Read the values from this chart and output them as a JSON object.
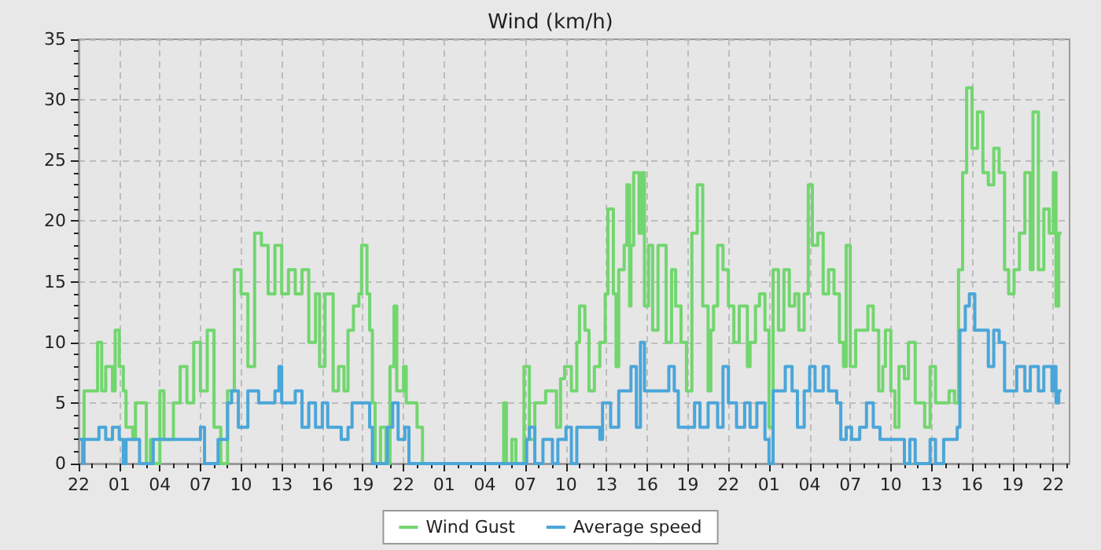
{
  "chart_data": {
    "type": "step",
    "title": "Wind (km/h)",
    "grid": true,
    "legend": "bottom",
    "xlim": [
      "--01-01T22:00",
      "--01-04T23:12"
    ],
    "xticks": [
      {
        "value": "--01-01T22:00",
        "label": "22"
      },
      {
        "value": "--01-01T23:00",
        "label": null
      },
      {
        "value": "--01-02T00:00",
        "label": null
      },
      {
        "value": "--01-02T01:00",
        "label": "01"
      },
      {
        "value": "--01-02T02:00",
        "label": null
      },
      {
        "value": "--01-02T03:00",
        "label": null
      },
      {
        "value": "--01-02T04:00",
        "label": "04"
      },
      {
        "value": "--01-02T05:00",
        "label": null
      },
      {
        "value": "--01-02T06:00",
        "label": null
      },
      {
        "value": "--01-02T07:00",
        "label": "07"
      },
      {
        "value": "--01-02T08:00",
        "label": null
      },
      {
        "value": "--01-02T09:00",
        "label": null
      },
      {
        "value": "--01-02T10:00",
        "label": "10"
      },
      {
        "value": "--01-02T11:00",
        "label": null
      },
      {
        "value": "--01-02T12:00",
        "label": null
      },
      {
        "value": "--01-02T13:00",
        "label": "13"
      },
      {
        "value": "--01-02T14:00",
        "label": null
      },
      {
        "value": "--01-02T15:00",
        "label": null
      },
      {
        "value": "--01-02T16:00",
        "label": "16"
      },
      {
        "value": "--01-02T17:00",
        "label": null
      },
      {
        "value": "--01-02T18:00",
        "label": null
      },
      {
        "value": "--01-02T19:00",
        "label": "19"
      },
      {
        "value": "--01-02T20:00",
        "label": null
      },
      {
        "value": "--01-02T21:00",
        "label": null
      },
      {
        "value": "--01-02T22:00",
        "label": "22"
      },
      {
        "value": "--01-02T23:00",
        "label": null
      },
      {
        "value": "--01-03T00:00",
        "label": null
      },
      {
        "value": "--01-03T01:00",
        "label": "01"
      },
      {
        "value": "--01-03T02:00",
        "label": null
      },
      {
        "value": "--01-03T03:00",
        "label": null
      },
      {
        "value": "--01-03T04:00",
        "label": "04"
      },
      {
        "value": "--01-03T05:00",
        "label": null
      },
      {
        "value": "--01-03T06:00",
        "label": null
      },
      {
        "value": "--01-03T07:00",
        "label": "07"
      },
      {
        "value": "--01-03T08:00",
        "label": null
      },
      {
        "value": "--01-03T09:00",
        "label": null
      },
      {
        "value": "--01-03T10:00",
        "label": "10"
      },
      {
        "value": "--01-03T11:00",
        "label": null
      },
      {
        "value": "--01-03T12:00",
        "label": null
      },
      {
        "value": "--01-03T13:00",
        "label": "13"
      },
      {
        "value": "--01-03T14:00",
        "label": null
      },
      {
        "value": "--01-03T15:00",
        "label": null
      },
      {
        "value": "--01-03T16:00",
        "label": "16"
      },
      {
        "value": "--01-03T17:00",
        "label": null
      },
      {
        "value": "--01-03T18:00",
        "label": null
      },
      {
        "value": "--01-03T19:00",
        "label": "19"
      },
      {
        "value": "--01-03T20:00",
        "label": null
      },
      {
        "value": "--01-03T21:00",
        "label": null
      },
      {
        "value": "--01-03T22:00",
        "label": "22"
      },
      {
        "value": "--01-03T23:00",
        "label": null
      },
      {
        "value": "--01-04T00:00",
        "label": null
      },
      {
        "value": "--01-04T01:00",
        "label": "01"
      },
      {
        "value": "--01-04T02:00",
        "label": null
      },
      {
        "value": "--01-04T03:00",
        "label": null
      },
      {
        "value": "--01-04T04:00",
        "label": "04"
      },
      {
        "value": "--01-04T05:00",
        "label": null
      },
      {
        "value": "--01-04T06:00",
        "label": null
      },
      {
        "value": "--01-04T07:00",
        "label": "07"
      },
      {
        "value": "--01-04T08:00",
        "label": null
      },
      {
        "value": "--01-04T09:00",
        "label": null
      },
      {
        "value": "--01-04T10:00",
        "label": "10"
      },
      {
        "value": "--01-04T11:00",
        "label": null
      },
      {
        "value": "--01-04T12:00",
        "label": null
      },
      {
        "value": "--01-04T13:00",
        "label": "13"
      },
      {
        "value": "--01-04T14:00",
        "label": null
      },
      {
        "value": "--01-04T15:00",
        "label": null
      },
      {
        "value": "--01-04T16:00",
        "label": "16"
      },
      {
        "value": "--01-04T17:00",
        "label": null
      },
      {
        "value": "--01-04T18:00",
        "label": null
      },
      {
        "value": "--01-04T19:00",
        "label": "19"
      },
      {
        "value": "--01-04T20:00",
        "label": null
      },
      {
        "value": "--01-04T21:00",
        "label": null
      },
      {
        "value": "--01-04T22:00",
        "label": "22"
      },
      {
        "value": "--01-04T23:00",
        "label": null
      }
    ],
    "ylim": [
      0,
      35
    ],
    "yticks": [
      0,
      {
        "value": 1,
        "label": null
      },
      {
        "value": 2,
        "label": null
      },
      {
        "value": 3,
        "label": null
      },
      {
        "value": 4,
        "label": null
      },
      5,
      {
        "value": 6,
        "label": null
      },
      {
        "value": 7,
        "label": null
      },
      {
        "value": 8,
        "label": null
      },
      {
        "value": 9,
        "label": null
      },
      10,
      {
        "value": 11,
        "label": null
      },
      {
        "value": 12,
        "label": null
      },
      {
        "value": 13,
        "label": null
      },
      {
        "value": 14,
        "label": null
      },
      15,
      {
        "value": 16,
        "label": null
      },
      {
        "value": 17,
        "label": null
      },
      {
        "value": 18,
        "label": null
      },
      {
        "value": 19,
        "label": null
      },
      20,
      {
        "value": 21,
        "label": null
      },
      {
        "value": 22,
        "label": null
      },
      {
        "value": 23,
        "label": null
      },
      {
        "value": 24,
        "label": null
      },
      25,
      {
        "value": 26,
        "label": null
      },
      {
        "value": 27,
        "label": null
      },
      {
        "value": 28,
        "label": null
      },
      {
        "value": 29,
        "label": null
      },
      30,
      {
        "value": 31,
        "label": null
      },
      {
        "value": 32,
        "label": null
      },
      {
        "value": 33,
        "label": null
      },
      {
        "value": 34,
        "label": null
      },
      35
    ],
    "series": [
      {
        "name": "Wind Gust",
        "color": "#72d66f",
        "x": [
          "--01-01T22:00",
          "--01-01T22:24",
          "--01-01T23:24",
          "--01-01T23:42",
          "--01-02T00:00",
          "--01-02T00:30",
          "--01-02T00:42",
          "--01-02T01:00",
          "--01-02T01:18",
          "--01-02T01:30",
          "--01-02T02:00",
          "--01-02T02:12",
          "--01-02T03:00",
          "--01-02T03:18",
          "--01-02T03:30",
          "--01-02T04:00",
          "--01-02T04:18",
          "--01-02T05:00",
          "--01-02T05:30",
          "--01-02T06:00",
          "--01-02T06:30",
          "--01-02T07:00",
          "--01-02T07:30",
          "--01-02T08:00",
          "--01-02T08:30",
          "--01-02T09:00",
          "--01-02T09:30",
          "--01-02T10:00",
          "--01-02T10:30",
          "--01-02T11:00",
          "--01-02T11:30",
          "--01-02T12:00",
          "--01-02T12:30",
          "--01-02T13:00",
          "--01-02T13:30",
          "--01-02T14:00",
          "--01-02T14:30",
          "--01-02T15:00",
          "--01-02T15:30",
          "--01-02T15:48",
          "--01-02T16:12",
          "--01-02T16:48",
          "--01-02T17:12",
          "--01-02T17:36",
          "--01-02T17:54",
          "--01-02T18:18",
          "--01-02T18:42",
          "--01-02T18:54",
          "--01-02T19:18",
          "--01-02T19:30",
          "--01-02T19:42",
          "--01-02T19:54",
          "--01-02T20:18",
          "--01-02T20:42",
          "--01-02T21:00",
          "--01-02T21:18",
          "--01-02T21:30",
          "--01-02T22:00",
          "--01-02T22:12",
          "--01-02T23:00",
          "--01-02T23:24",
          "--01-03T05:24",
          "--01-03T05:36",
          "--01-03T06:00",
          "--01-03T06:18",
          "--01-03T06:54",
          "--01-03T07:18",
          "--01-03T07:42",
          "--01-03T08:30",
          "--01-03T09:18",
          "--01-03T09:36",
          "--01-03T09:54",
          "--01-03T10:24",
          "--01-03T10:48",
          "--01-03T11:00",
          "--01-03T11:24",
          "--01-03T11:42",
          "--01-03T12:06",
          "--01-03T12:30",
          "--01-03T12:54",
          "--01-03T13:06",
          "--01-03T13:30",
          "--01-03T13:42",
          "--01-03T13:54",
          "--01-03T14:18",
          "--01-03T14:30",
          "--01-03T14:42",
          "--01-03T14:48",
          "--01-03T15:00",
          "--01-03T15:24",
          "--01-03T15:36",
          "--01-03T15:48",
          "--01-03T16:06",
          "--01-03T16:24",
          "--01-03T16:48",
          "--01-03T17:24",
          "--01-03T17:48",
          "--01-03T18:06",
          "--01-03T18:30",
          "--01-03T18:54",
          "--01-03T19:18",
          "--01-03T19:42",
          "--01-03T20:06",
          "--01-03T20:30",
          "--01-03T20:42",
          "--01-03T20:54",
          "--01-03T21:12",
          "--01-03T21:36",
          "--01-03T22:00",
          "--01-03T22:24",
          "--01-03T22:48",
          "--01-03T23:24",
          "--01-03T23:36",
          "--01-04T00:00",
          "--01-04T00:18",
          "--01-04T00:42",
          "--01-04T01:00",
          "--01-04T01:18",
          "--01-04T01:42",
          "--01-04T02:06",
          "--01-04T02:30",
          "--01-04T02:54",
          "--01-04T03:12",
          "--01-04T03:36",
          "--01-04T03:54",
          "--01-04T04:12",
          "--01-04T04:36",
          "--01-04T05:00",
          "--01-04T05:24",
          "--01-04T05:48",
          "--01-04T06:12",
          "--01-04T06:30",
          "--01-04T06:42",
          "--01-04T07:00",
          "--01-04T07:24",
          "--01-04T08:18",
          "--01-04T08:42",
          "--01-04T09:06",
          "--01-04T09:24",
          "--01-04T09:36",
          "--01-04T10:00",
          "--01-04T10:18",
          "--01-04T10:36",
          "--01-04T11:00",
          "--01-04T11:18",
          "--01-04T11:48",
          "--01-04T12:30",
          "--01-04T12:54",
          "--01-04T13:18",
          "--01-04T14:18",
          "--01-04T14:42",
          "--01-04T15:00",
          "--01-04T15:18",
          "--01-04T15:36",
          "--01-04T16:00",
          "--01-04T16:24",
          "--01-04T16:48",
          "--01-04T17:12",
          "--01-04T17:36",
          "--01-04T18:00",
          "--01-04T18:24",
          "--01-04T18:42",
          "--01-04T19:06",
          "--01-04T19:30",
          "--01-04T19:54",
          "--01-04T20:18",
          "--01-04T20:30",
          "--01-04T20:54",
          "--01-04T21:18",
          "--01-04T21:42",
          "--01-04T22:00",
          "--01-04T22:12",
          "--01-04T22:24",
          "--01-04T22:36"
        ],
        "values": [
          2,
          6,
          10,
          6,
          8,
          6,
          11,
          8,
          6,
          3,
          2,
          5,
          0,
          2,
          0,
          6,
          2,
          5,
          8,
          5,
          10,
          6,
          11,
          3,
          0,
          6,
          16,
          14,
          8,
          19,
          18,
          14,
          18,
          14,
          16,
          14,
          16,
          10,
          14,
          8,
          14,
          6,
          8,
          6,
          11,
          13,
          14,
          18,
          14,
          11,
          5,
          0,
          3,
          0,
          8,
          13,
          6,
          8,
          5,
          3,
          0,
          5,
          0,
          2,
          0,
          8,
          2,
          5,
          6,
          3,
          7,
          8,
          6,
          10,
          13,
          11,
          6,
          8,
          10,
          14,
          21,
          14,
          8,
          16,
          18,
          23,
          13,
          18,
          24,
          19,
          24,
          13,
          18,
          11,
          18,
          10,
          16,
          13,
          10,
          6,
          19,
          23,
          13,
          6,
          11,
          13,
          18,
          16,
          13,
          10,
          13,
          8,
          10,
          13,
          14,
          11,
          3,
          16,
          11,
          16,
          13,
          14,
          11,
          14,
          23,
          18,
          19,
          14,
          16,
          14,
          10,
          8,
          18,
          8,
          11,
          13,
          11,
          6,
          8,
          11,
          6,
          3,
          8,
          7,
          10,
          5,
          3,
          8,
          5,
          6,
          5,
          16,
          24,
          31,
          26,
          29,
          24,
          23,
          26,
          24,
          16,
          14,
          16,
          19,
          24,
          16,
          29,
          16,
          21,
          19,
          24,
          13,
          19,
          19
        ]
      },
      {
        "name": "Average speed",
        "color": "#4aa6d9",
        "x": [
          "--01-01T22:00",
          "--01-01T22:18",
          "--01-01T22:24",
          "--01-01T23:30",
          "--01-02T00:00",
          "--01-02T00:30",
          "--01-02T01:00",
          "--01-02T01:18",
          "--01-02T01:30",
          "--01-02T02:30",
          "--01-02T03:30",
          "--01-02T07:00",
          "--01-02T07:18",
          "--01-02T08:18",
          "--01-02T09:00",
          "--01-02T09:18",
          "--01-02T09:48",
          "--01-02T10:30",
          "--01-02T11:18",
          "--01-02T12:30",
          "--01-02T12:48",
          "--01-02T13:00",
          "--01-02T14:00",
          "--01-02T14:30",
          "--01-02T15:00",
          "--01-02T15:30",
          "--01-02T16:00",
          "--01-02T16:24",
          "--01-02T17:24",
          "--01-02T17:54",
          "--01-02T18:12",
          "--01-02T19:30",
          "--01-02T19:42",
          "--01-02T20:48",
          "--01-02T21:12",
          "--01-02T21:36",
          "--01-02T22:06",
          "--01-02T22:24",
          "--01-03T07:06",
          "--01-03T07:18",
          "--01-03T07:42",
          "--01-03T08:18",
          "--01-03T09:00",
          "--01-03T09:24",
          "--01-03T10:00",
          "--01-03T10:24",
          "--01-03T10:48",
          "--01-03T12:30",
          "--01-03T12:42",
          "--01-03T13:18",
          "--01-03T13:54",
          "--01-03T14:48",
          "--01-03T15:12",
          "--01-03T15:30",
          "--01-03T15:48",
          "--01-03T17:36",
          "--01-03T18:00",
          "--01-03T18:18",
          "--01-03T19:30",
          "--01-03T19:54",
          "--01-03T20:30",
          "--01-03T21:12",
          "--01-03T21:36",
          "--01-03T22:00",
          "--01-03T22:36",
          "--01-03T23:12",
          "--01-03T23:36",
          "--01-04T00:06",
          "--01-04T00:42",
          "--01-04T01:00",
          "--01-04T01:18",
          "--01-04T02:12",
          "--01-04T02:42",
          "--01-04T03:06",
          "--01-04T03:36",
          "--01-04T04:00",
          "--01-04T04:24",
          "--01-04T05:00",
          "--01-04T05:24",
          "--01-04T06:00",
          "--01-04T06:18",
          "--01-04T06:42",
          "--01-04T07:06",
          "--01-04T07:42",
          "--01-04T08:12",
          "--01-04T08:42",
          "--01-04T09:12",
          "--01-04T11:00",
          "--01-04T11:24",
          "--01-04T11:48",
          "--01-04T12:54",
          "--01-04T13:18",
          "--01-04T13:54",
          "--01-04T14:54",
          "--01-04T15:06",
          "--01-04T15:30",
          "--01-04T15:48",
          "--01-04T16:12",
          "--01-04T17:12",
          "--01-04T17:36",
          "--01-04T18:00",
          "--01-04T18:24",
          "--01-04T19:18",
          "--01-04T19:54",
          "--01-04T20:18",
          "--01-04T20:54",
          "--01-04T21:18",
          "--01-04T21:54",
          "--01-04T22:00",
          "--01-04T22:12",
          "--01-04T22:24",
          "--01-04T22:36"
        ],
        "values": [
          2,
          0,
          2,
          3,
          2,
          3,
          2,
          0,
          2,
          0,
          2,
          3,
          0,
          2,
          5,
          6,
          3,
          6,
          5,
          6,
          8,
          5,
          6,
          3,
          5,
          3,
          5,
          3,
          2,
          3,
          5,
          3,
          0,
          3,
          5,
          2,
          3,
          0,
          2,
          3,
          0,
          2,
          0,
          2,
          3,
          0,
          3,
          2,
          5,
          3,
          6,
          8,
          3,
          10,
          6,
          8,
          6,
          3,
          5,
          3,
          5,
          3,
          8,
          5,
          3,
          5,
          3,
          5,
          2,
          0,
          6,
          8,
          6,
          3,
          6,
          8,
          6,
          8,
          6,
          5,
          2,
          3,
          2,
          3,
          5,
          3,
          2,
          0,
          2,
          0,
          2,
          0,
          2,
          3,
          11,
          13,
          14,
          11,
          8,
          11,
          10,
          6,
          8,
          6,
          8,
          6,
          8,
          6,
          8,
          5,
          6,
          6
        ]
      }
    ]
  }
}
